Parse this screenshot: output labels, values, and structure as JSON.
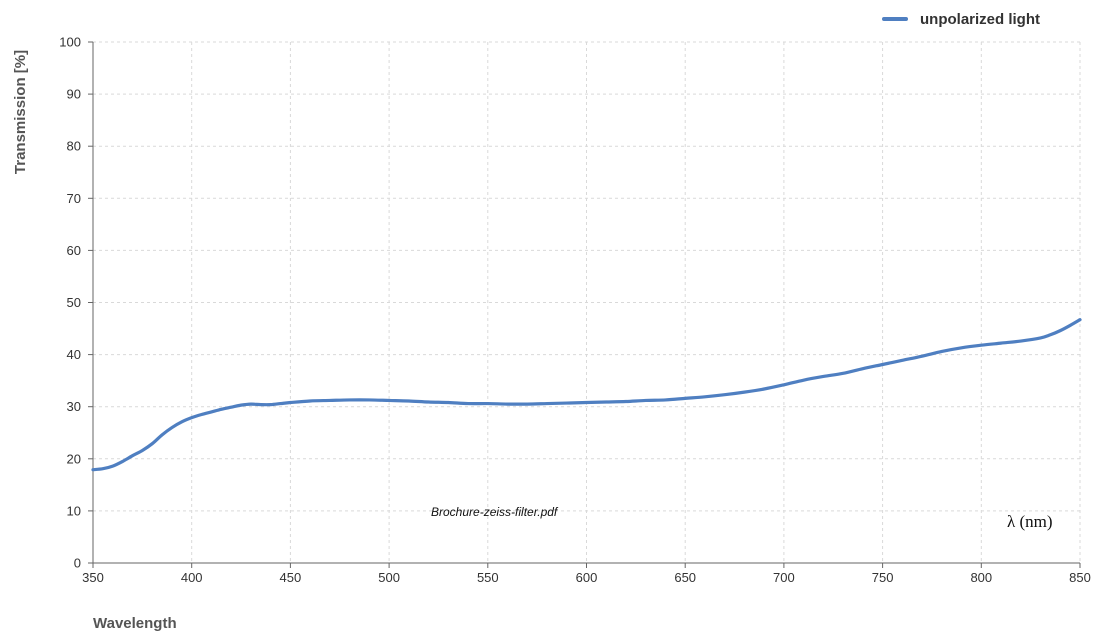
{
  "chart_data": {
    "type": "line",
    "title": "",
    "xlabel": "Wavelength",
    "ylabel": "Transmission [%]",
    "xlim": [
      350,
      850
    ],
    "ylim": [
      0,
      100
    ],
    "x_ticks": [
      350,
      400,
      450,
      500,
      550,
      600,
      650,
      700,
      750,
      800,
      850
    ],
    "y_ticks": [
      0,
      10,
      20,
      30,
      40,
      50,
      60,
      70,
      80,
      90,
      100
    ],
    "grid": true,
    "legend_position": "top-right",
    "annotations": {
      "source": "Brochure-zeiss-filter.pdf",
      "unit": "λ (nm)"
    },
    "series": [
      {
        "name": "unpolarized light",
        "color": "#4f7fc1",
        "x": [
          350,
          355,
          360,
          365,
          370,
          375,
          380,
          385,
          390,
          395,
          400,
          405,
          410,
          415,
          420,
          425,
          430,
          435,
          440,
          445,
          450,
          460,
          470,
          480,
          490,
          500,
          510,
          520,
          530,
          540,
          550,
          560,
          570,
          580,
          590,
          600,
          610,
          620,
          630,
          640,
          650,
          660,
          670,
          680,
          690,
          700,
          710,
          720,
          730,
          740,
          750,
          760,
          770,
          780,
          790,
          800,
          810,
          820,
          830,
          835,
          840,
          845,
          850
        ],
        "y": [
          17.9,
          18.1,
          18.6,
          19.5,
          20.6,
          21.6,
          22.9,
          24.6,
          26.0,
          27.1,
          27.9,
          28.5,
          29.0,
          29.5,
          29.9,
          30.3,
          30.5,
          30.4,
          30.4,
          30.6,
          30.8,
          31.1,
          31.2,
          31.3,
          31.3,
          31.2,
          31.1,
          30.9,
          30.8,
          30.6,
          30.6,
          30.5,
          30.5,
          30.6,
          30.7,
          30.8,
          30.9,
          31.0,
          31.2,
          31.3,
          31.6,
          31.9,
          32.3,
          32.8,
          33.4,
          34.2,
          35.1,
          35.8,
          36.4,
          37.3,
          38.1,
          38.9,
          39.7,
          40.6,
          41.3,
          41.8,
          42.2,
          42.6,
          43.2,
          43.8,
          44.6,
          45.6,
          46.7
        ]
      }
    ]
  }
}
